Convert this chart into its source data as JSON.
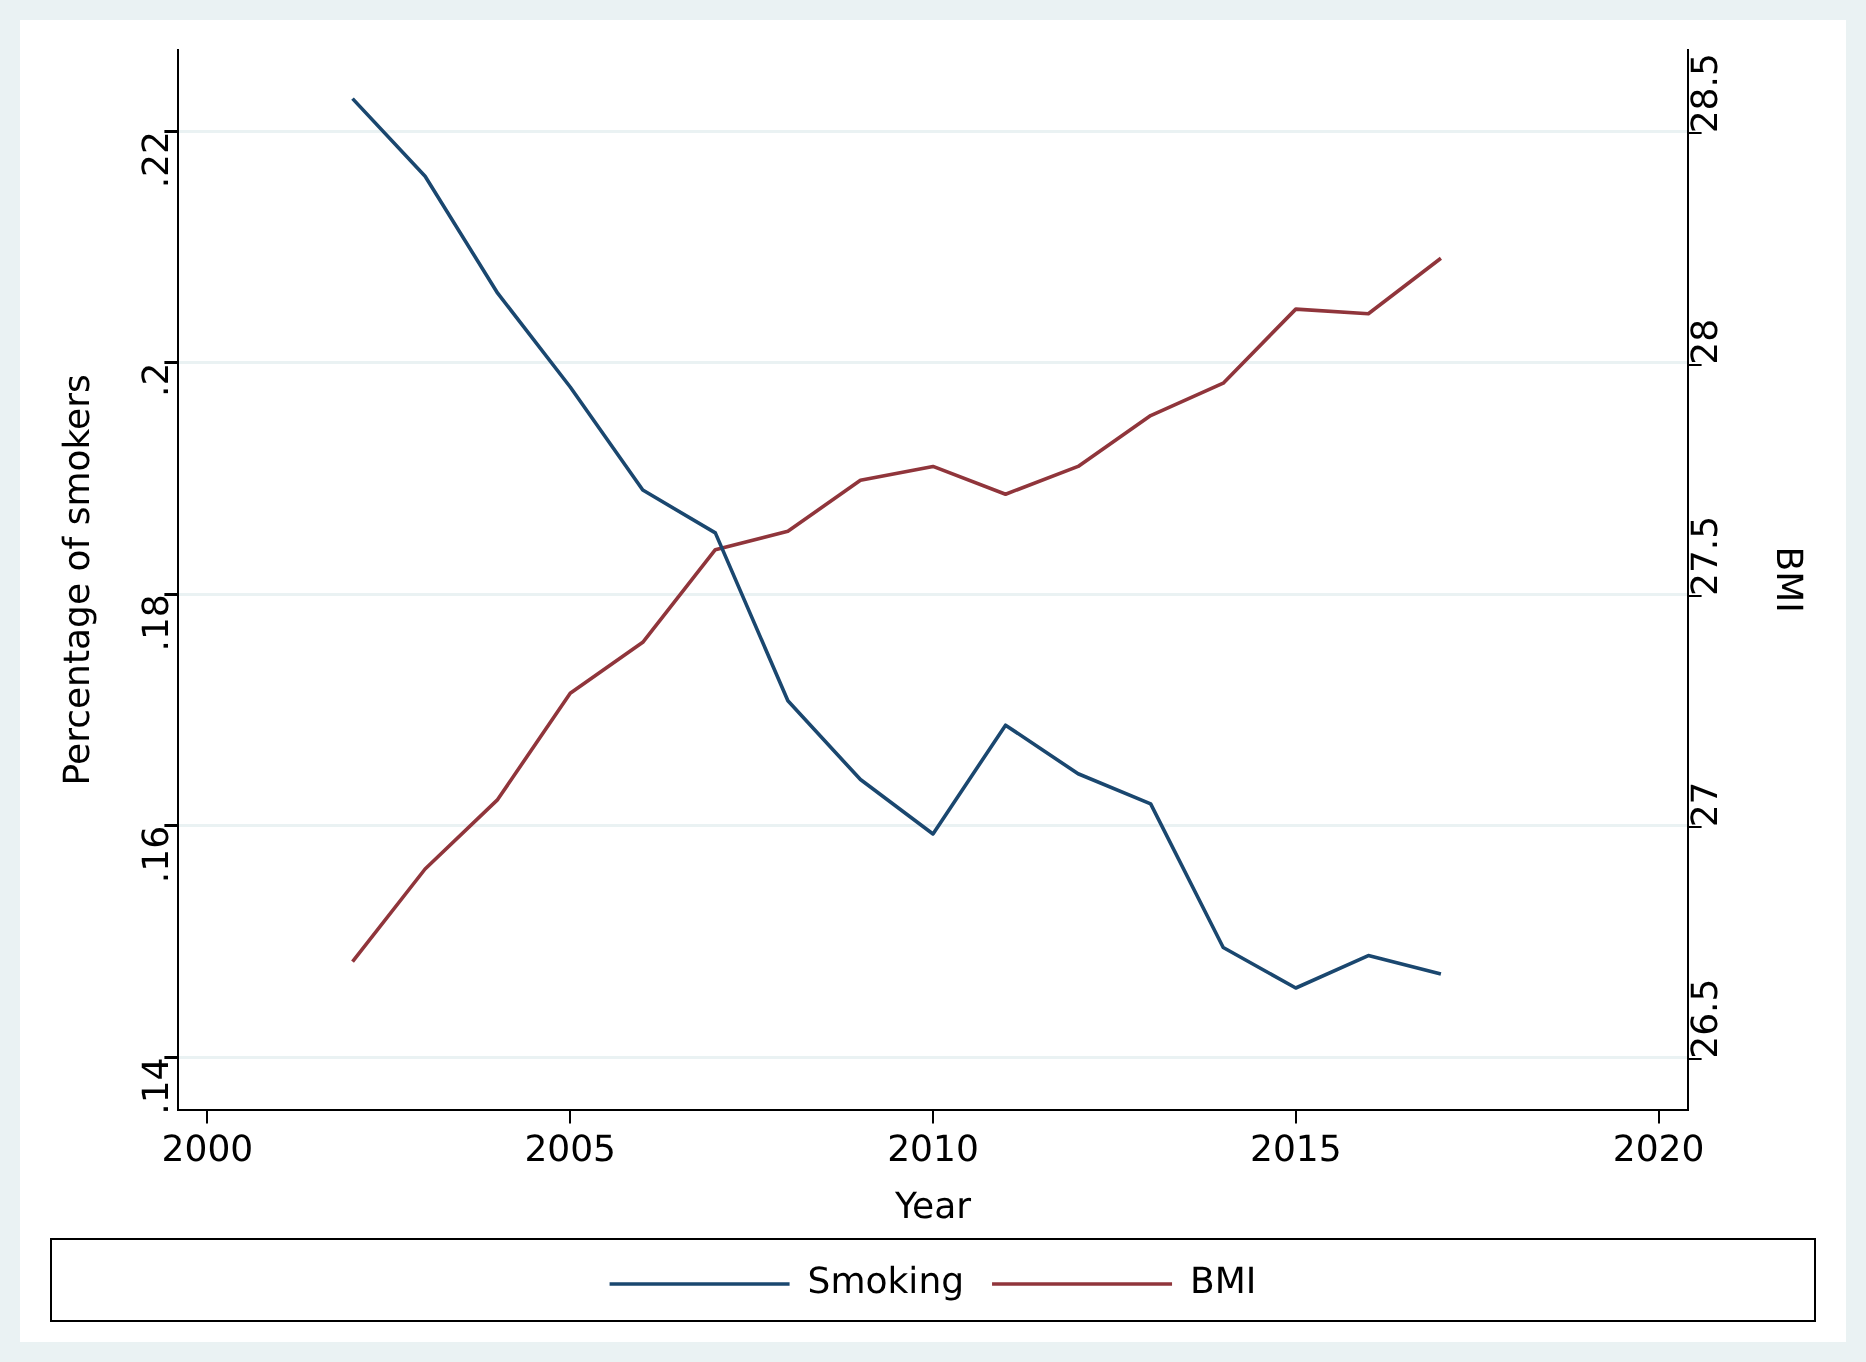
{
  "chart_data": {
    "type": "line",
    "xlabel": "Year",
    "ylabel": "Percentage of smokers",
    "y2label": "BMI",
    "x": [
      2002,
      2003,
      2004,
      2005,
      2006,
      2007,
      2008,
      2009,
      2010,
      2011,
      2012,
      2013,
      2014,
      2015,
      2016,
      2017
    ],
    "series": [
      {
        "name": "Smoking",
        "color": "#1a476f",
        "values": [
          0.2228,
          0.2161,
          0.206,
          0.1979,
          0.189,
          0.1853,
          0.1708,
          0.164,
          0.1593,
          0.1687,
          0.1645,
          0.1619,
          0.1495,
          0.146,
          0.1488,
          0.1472
        ]
      },
      {
        "name": "BMI",
        "color": "#90353b",
        "axis": "y2",
        "values": [
          26.71,
          26.91,
          27.06,
          27.29,
          27.4,
          27.6,
          27.64,
          27.75,
          27.78,
          27.72,
          27.78,
          27.89,
          27.96,
          28.12,
          28.11,
          28.23
        ]
      }
    ],
    "xlim": [
      1999.6,
      2020.4
    ],
    "xticks": [
      2000,
      2005,
      2010,
      2015,
      2020
    ],
    "ylim": [
      0.1355,
      0.227
    ],
    "yticks": [
      {
        "value": 0.14,
        "label": ".14"
      },
      {
        "value": 0.16,
        "label": ".16"
      },
      {
        "value": 0.18,
        "label": ".18"
      },
      {
        "value": 0.2,
        "label": ".2"
      },
      {
        "value": 0.22,
        "label": ".22"
      }
    ],
    "y2lim": [
      26.39,
      28.68
    ],
    "y2ticks": [
      26.5,
      27,
      27.5,
      28,
      28.5
    ],
    "grid": "y",
    "legend": "bottom",
    "marker": "none",
    "line_style": "solid"
  }
}
